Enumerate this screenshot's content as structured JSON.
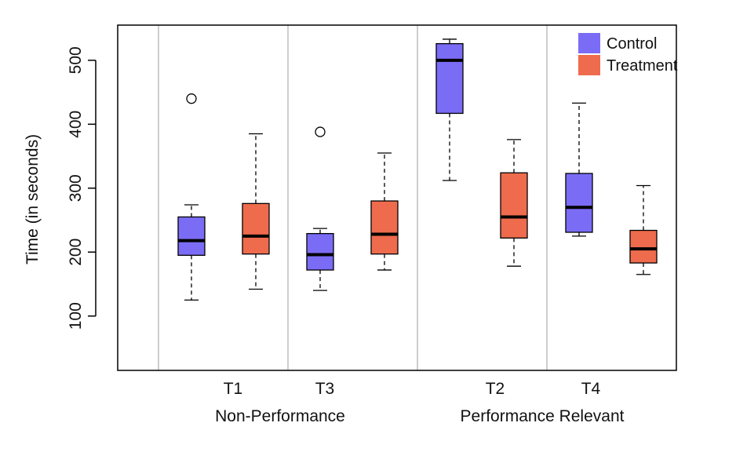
{
  "chart_data": {
    "type": "box",
    "title": "",
    "xlabel": "",
    "ylabel": "Time (in seconds)",
    "ylim": [
      15,
      555
    ],
    "yticks": [
      100,
      200,
      300,
      400,
      500
    ],
    "grid": false,
    "legend_position": "top-right",
    "series": [
      {
        "name": "Control",
        "color": "#7B6CF6"
      },
      {
        "name": "Treatment",
        "color": "#EE6B4D"
      }
    ],
    "tasks": [
      {
        "label": "T1",
        "control": {
          "min": 125,
          "q1": 195,
          "median": 218,
          "q3": 255,
          "max": 274,
          "outliers": [
            440
          ]
        },
        "treatment": {
          "min": 142,
          "q1": 197,
          "median": 225,
          "q3": 276,
          "max": 385,
          "outliers": []
        }
      },
      {
        "label": "T3",
        "control": {
          "min": 140,
          "q1": 172,
          "median": 196,
          "q3": 229,
          "max": 237,
          "outliers": [
            388
          ]
        },
        "treatment": {
          "min": 172,
          "q1": 197,
          "median": 228,
          "q3": 280,
          "max": 355,
          "outliers": []
        }
      },
      {
        "label": "T2",
        "control": {
          "min": 312,
          "q1": 417,
          "median": 500,
          "q3": 526,
          "max": 533,
          "outliers": []
        },
        "treatment": {
          "min": 178,
          "q1": 222,
          "median": 255,
          "q3": 324,
          "max": 376,
          "outliers": []
        }
      },
      {
        "label": "T4",
        "control": {
          "min": 225,
          "q1": 231,
          "median": 270,
          "q3": 323,
          "max": 433,
          "outliers": []
        },
        "treatment": {
          "min": 165,
          "q1": 183,
          "median": 205,
          "q3": 234,
          "max": 304,
          "outliers": []
        }
      }
    ],
    "groups": [
      "Non-Performance",
      "Performance Relevant"
    ]
  }
}
